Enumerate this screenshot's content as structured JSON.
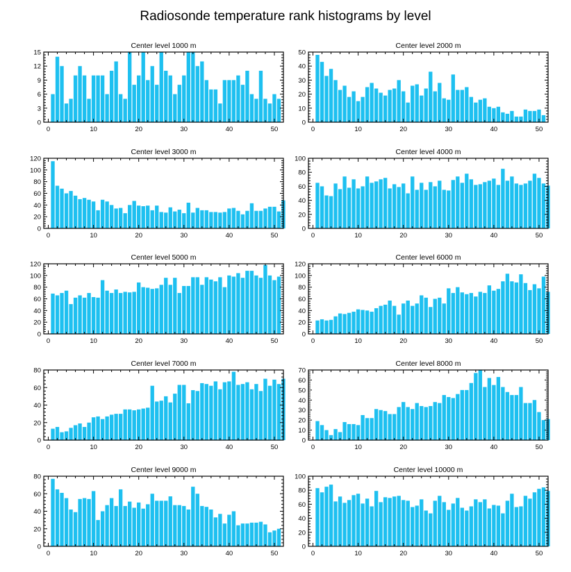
{
  "chart_data": {
    "title": "Radiosonde temperature rank histograms by level",
    "type": "bar",
    "x_range": [
      -1,
      52
    ],
    "x_ticks": [
      0,
      10,
      20,
      30,
      40,
      50
    ],
    "bar_color": "#1ec0f0",
    "panels": [
      {
        "title": "Center level 1000 m",
        "ylim": [
          0,
          15
        ],
        "yticks": [
          0,
          3,
          6,
          9,
          12,
          15
        ],
        "values": [
          6,
          14,
          12,
          4,
          5,
          10,
          12,
          10,
          5,
          10,
          10,
          10,
          6,
          11,
          13,
          6,
          5,
          15,
          8,
          10,
          15,
          9,
          12,
          8,
          15,
          11,
          10,
          6,
          8,
          10,
          15,
          15,
          12,
          13,
          9,
          7,
          7,
          4,
          9,
          9,
          9,
          10,
          8,
          11,
          6,
          5,
          11,
          5,
          4,
          6,
          5
        ]
      },
      {
        "title": "Center level 2000 m",
        "ylim": [
          0,
          50
        ],
        "yticks": [
          0,
          10,
          20,
          30,
          40,
          50
        ],
        "values": [
          48,
          43,
          33,
          38,
          30,
          23,
          26,
          18,
          22,
          15,
          18,
          25,
          28,
          24,
          21,
          19,
          23,
          24,
          30,
          22,
          14,
          26,
          27,
          19,
          24,
          36,
          22,
          28,
          17,
          16,
          34,
          23,
          23,
          25,
          18,
          14,
          16,
          17,
          11,
          10,
          11,
          7,
          6,
          8,
          4,
          4,
          9,
          8,
          8,
          9,
          5
        ]
      },
      {
        "title": "Center level 3000 m",
        "ylim": [
          0,
          120
        ],
        "yticks": [
          0,
          20,
          40,
          60,
          80,
          100,
          120
        ],
        "values": [
          115,
          73,
          68,
          60,
          64,
          56,
          50,
          52,
          49,
          46,
          31,
          49,
          46,
          40,
          34,
          35,
          26,
          40,
          47,
          39,
          38,
          39,
          31,
          39,
          28,
          27,
          36,
          29,
          32,
          26,
          44,
          27,
          35,
          31,
          31,
          28,
          28,
          27,
          28,
          34,
          35,
          30,
          24,
          30,
          43,
          30,
          30,
          34,
          37,
          37,
          29,
          48
        ]
      },
      {
        "title": "Center level 4000 m",
        "ylim": [
          0,
          100
        ],
        "yticks": [
          0,
          20,
          40,
          60,
          80,
          100
        ],
        "values": [
          65,
          60,
          47,
          46,
          64,
          56,
          74,
          58,
          70,
          57,
          60,
          74,
          65,
          67,
          70,
          72,
          57,
          63,
          59,
          64,
          50,
          74,
          55,
          65,
          55,
          66,
          60,
          68,
          55,
          54,
          69,
          74,
          65,
          78,
          70,
          62,
          63,
          66,
          68,
          71,
          62,
          85,
          68,
          74,
          64,
          62,
          64,
          68,
          78,
          72,
          64,
          61
        ]
      },
      {
        "title": "Center level 5000 m",
        "ylim": [
          0,
          120
        ],
        "yticks": [
          0,
          20,
          40,
          60,
          80,
          100,
          120
        ],
        "values": [
          69,
          66,
          70,
          74,
          51,
          62,
          66,
          62,
          70,
          63,
          62,
          92,
          74,
          70,
          76,
          70,
          72,
          71,
          72,
          88,
          80,
          79,
          77,
          78,
          84,
          96,
          84,
          96,
          70,
          82,
          82,
          97,
          97,
          84,
          97,
          93,
          90,
          97,
          80,
          100,
          98,
          104,
          96,
          108,
          108,
          100,
          96,
          118,
          100,
          92,
          98
        ]
      },
      {
        "title": "Center level 6000 m",
        "ylim": [
          0,
          120
        ],
        "yticks": [
          0,
          20,
          40,
          60,
          80,
          100,
          120
        ],
        "values": [
          23,
          25,
          23,
          24,
          30,
          35,
          34,
          36,
          38,
          42,
          41,
          40,
          38,
          44,
          48,
          50,
          57,
          48,
          33,
          52,
          57,
          48,
          52,
          66,
          62,
          46,
          60,
          62,
          52,
          78,
          70,
          80,
          71,
          68,
          70,
          64,
          72,
          70,
          83,
          74,
          77,
          90,
          103,
          90,
          88,
          102,
          87,
          75,
          85,
          78,
          98,
          72
        ]
      },
      {
        "title": "Center level 7000 m",
        "ylim": [
          0,
          80
        ],
        "yticks": [
          0,
          20,
          40,
          60,
          80
        ],
        "values": [
          13,
          15,
          9,
          10,
          14,
          17,
          19,
          15,
          20,
          26,
          27,
          24,
          27,
          29,
          30,
          30,
          35,
          35,
          34,
          35,
          36,
          37,
          62,
          44,
          45,
          50,
          43,
          53,
          63,
          63,
          42,
          57,
          56,
          65,
          64,
          62,
          67,
          58,
          66,
          67,
          78,
          63,
          64,
          66,
          58,
          64,
          56,
          70,
          62,
          69,
          64,
          70
        ]
      },
      {
        "title": "Center level 8000 m",
        "ylim": [
          0,
          70
        ],
        "yticks": [
          0,
          10,
          20,
          30,
          40,
          50,
          60,
          70
        ],
        "values": [
          19,
          15,
          10,
          5,
          11,
          8,
          18,
          16,
          16,
          15,
          25,
          22,
          22,
          31,
          30,
          29,
          26,
          26,
          33,
          38,
          33,
          31,
          37,
          34,
          33,
          34,
          38,
          37,
          45,
          43,
          42,
          46,
          50,
          50,
          57,
          67,
          70,
          53,
          62,
          55,
          63,
          53,
          48,
          45,
          45,
          53,
          37,
          37,
          40,
          28,
          20,
          21
        ]
      },
      {
        "title": "Center level 9000 m",
        "ylim": [
          0,
          80
        ],
        "yticks": [
          0,
          20,
          40,
          60,
          80
        ],
        "values": [
          77,
          65,
          61,
          55,
          42,
          39,
          54,
          55,
          54,
          63,
          30,
          40,
          47,
          55,
          46,
          65,
          46,
          51,
          44,
          50,
          43,
          48,
          60,
          52,
          52,
          52,
          57,
          47,
          47,
          46,
          42,
          68,
          60,
          46,
          45,
          42,
          33,
          37,
          26,
          36,
          40,
          24,
          26,
          26,
          27,
          27,
          28,
          25,
          16,
          18,
          20
        ]
      },
      {
        "title": "Center level 10000 m",
        "ylim": [
          0,
          100
        ],
        "yticks": [
          0,
          20,
          40,
          60,
          80,
          100
        ],
        "values": [
          83,
          77,
          85,
          88,
          64,
          71,
          62,
          66,
          73,
          75,
          61,
          68,
          57,
          79,
          63,
          70,
          69,
          71,
          72,
          66,
          65,
          56,
          58,
          67,
          51,
          47,
          65,
          72,
          63,
          52,
          61,
          69,
          55,
          51,
          57,
          67,
          63,
          67,
          54,
          59,
          58,
          47,
          65,
          75,
          56,
          57,
          72,
          68,
          77,
          82,
          84,
          79
        ]
      }
    ]
  }
}
